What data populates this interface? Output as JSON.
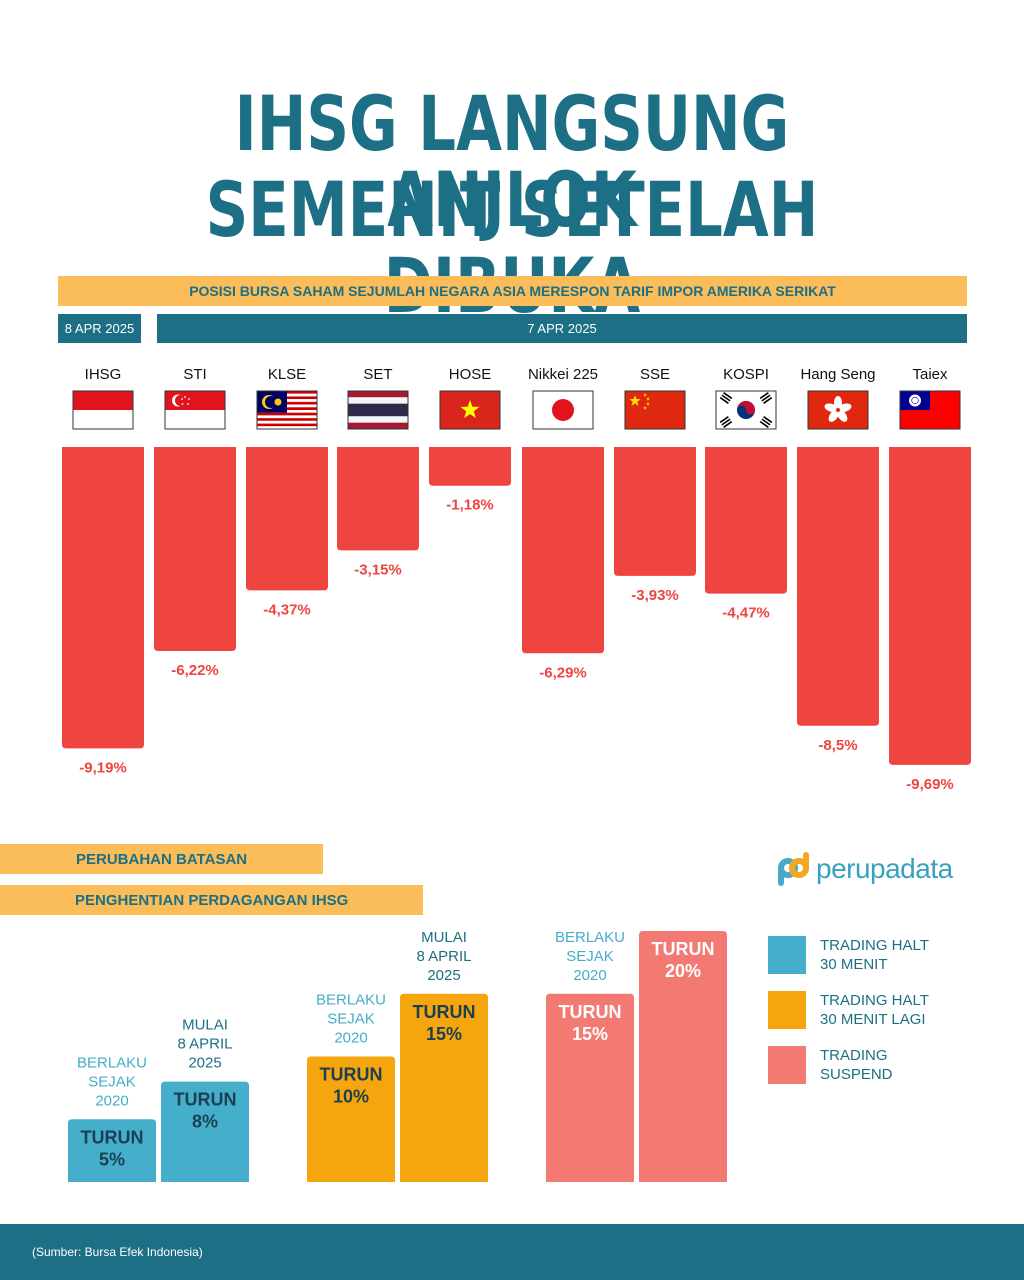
{
  "title": {
    "line1": "IHSG LANGSUNG ANJLOK",
    "line2": "SEMENIT SETELAH DIBUKA"
  },
  "subtitle": "POSISI BURSA SAHAM SEJUMLAH NEGARA ASIA MERESPON TARIF IMPOR AMERIKA SERIKAT",
  "dates": {
    "first": "8 APR 2025",
    "second": "7 APR 2025"
  },
  "colors": {
    "title": "#1c6f84",
    "accent_bar": "#fbbd59",
    "negative_bar": "#ee4540",
    "halt_30": "#44aecb",
    "halt_30_again": "#f5a50d",
    "suspend": "#f37a73",
    "footer": "#1c6f84"
  },
  "chart_data": [
    {
      "type": "bar",
      "categories": [
        "IHSG",
        "STI",
        "KLSE",
        "SET",
        "HOSE",
        "Nikkei 225",
        "SSE",
        "KOSPI",
        "Hang Seng",
        "Taiex"
      ],
      "values": [
        -9.19,
        -6.22,
        -4.37,
        -3.15,
        -1.18,
        -6.29,
        -3.93,
        -4.47,
        -8.5,
        -9.69
      ],
      "value_labels": [
        "-9,19%",
        "-6,22%",
        "-4,37%",
        "-3,15%",
        "-1,18%",
        "-6,29%",
        "-3,93%",
        "-4,47%",
        "-8,5%",
        "-9,69%"
      ],
      "flags": [
        "indonesia-flag",
        "singapore-flag",
        "malaysia-flag",
        "thailand-flag",
        "vietnam-flag",
        "japan-flag",
        "china-flag",
        "south-korea-flag",
        "hong-kong-flag",
        "taiwan-flag"
      ],
      "ylim": [
        -10,
        0
      ],
      "title": "",
      "xlabel": "",
      "ylabel": ""
    },
    {
      "type": "bar",
      "categories": [
        "TRADING HALT 30 MENIT",
        "TRADING HALT 30 MENIT LAGI",
        "TRADING SUSPEND"
      ],
      "series": [
        {
          "name": "BERLAKU SEJAK 2020",
          "values": [
            5,
            10,
            15
          ]
        },
        {
          "name": "MULAI 8 APRIL 2025",
          "values": [
            8,
            15,
            20
          ]
        }
      ],
      "bar_labels": [
        {
          "line1": "TURUN",
          "line2": "5%",
          "caption": "BERLAKU SEJAK 2020"
        },
        {
          "line1": "TURUN",
          "line2": "8%",
          "caption": "MULAI 8 APRIL 2025"
        },
        {
          "line1": "TURUN",
          "line2": "10%",
          "caption": "BERLAKU SEJAK 2020"
        },
        {
          "line1": "TURUN",
          "line2": "15%",
          "caption": "MULAI 8 APRIL 2025"
        },
        {
          "line1": "TURUN",
          "line2": "15%",
          "caption": "BERLAKU SEJAK 2020"
        },
        {
          "line1": "TURUN",
          "line2": "20%",
          "caption": "MULAI 8 APRIL 2025"
        }
      ],
      "ylim": [
        0,
        20
      ],
      "title": "",
      "xlabel": "",
      "ylabel": ""
    }
  ],
  "section_labels": {
    "first": "PERUBAHAN BATASAN",
    "second": "PENGHENTIAN PERDAGANGAN IHSG"
  },
  "legend": [
    {
      "line1": "TRADING HALT",
      "line2": "30 MENIT"
    },
    {
      "line1": "TRADING HALT",
      "line2": "30 MENIT LAGI"
    },
    {
      "line1": "TRADING",
      "line2": "SUSPEND"
    }
  ],
  "logo": "perupadata",
  "source": "(Sumber: Bursa Efek Indonesia)"
}
